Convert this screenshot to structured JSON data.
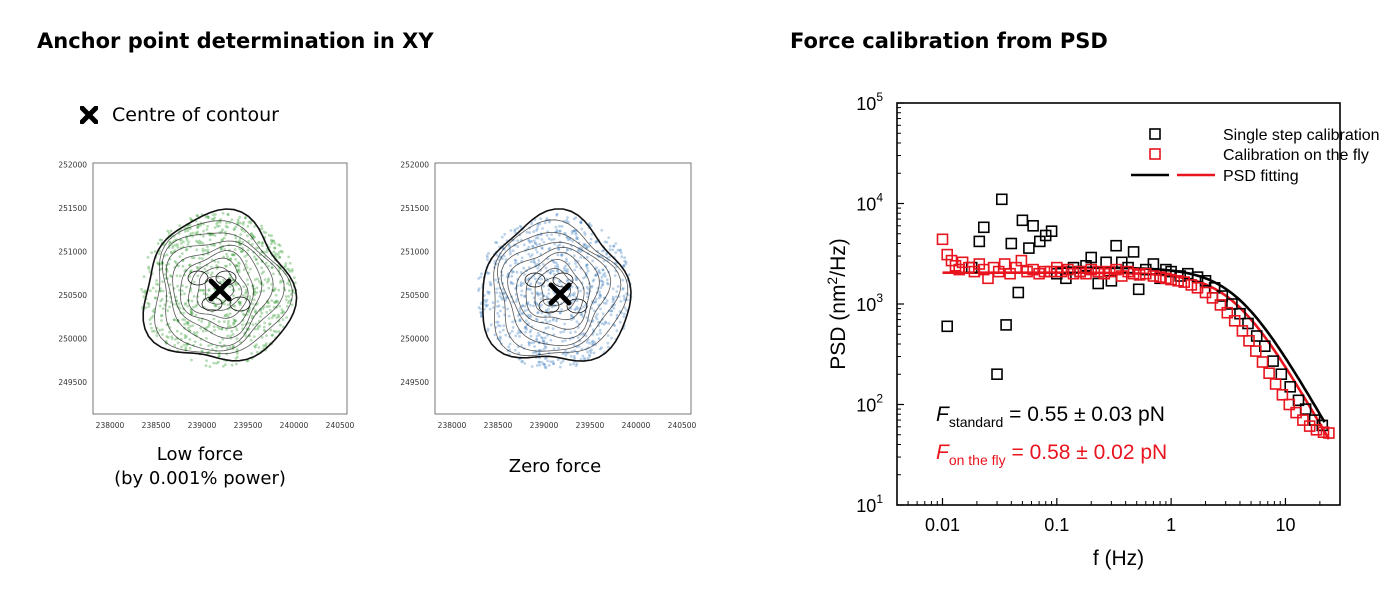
{
  "left_panel": {
    "heading": "Anchor point determination in XY",
    "legend_label": "Centre of contour",
    "plots": [
      {
        "caption_line1": "Low force",
        "caption_line2": "(by 0.001% power)",
        "color": "#2e9a2e",
        "x_ticks": [
          "238000",
          "238500",
          "239000",
          "239500",
          "240000",
          "240500"
        ],
        "y_ticks": [
          "252000",
          "251500",
          "251000",
          "250500",
          "250000",
          "249500"
        ]
      },
      {
        "caption_line1": "Zero force",
        "caption_line2": "",
        "color": "#3d7fc0",
        "x_ticks": [
          "238000",
          "238500",
          "239000",
          "239500",
          "240000",
          "240500"
        ],
        "y_ticks": [
          "252000",
          "251500",
          "251000",
          "250500",
          "250000",
          "249500"
        ]
      }
    ]
  },
  "right_panel": {
    "heading": "Force calibration from PSD"
  },
  "chart_data": {
    "type": "scatter",
    "title": "",
    "xlabel": "f (Hz)",
    "ylabel_main": "PSD (nm",
    "ylabel_sup": "2",
    "ylabel_end": "/Hz)",
    "xscale": "log",
    "yscale": "log",
    "xlim": [
      0.004,
      30
    ],
    "ylim": [
      10,
      100000
    ],
    "x_ticks": [
      {
        "value": 0.01,
        "label": "0.01"
      },
      {
        "value": 0.1,
        "label": "0.1"
      },
      {
        "value": 1,
        "label": "1"
      },
      {
        "value": 10,
        "label": "10"
      }
    ],
    "y_ticks": [
      {
        "value": 10,
        "base": "10",
        "exp": "1"
      },
      {
        "value": 100,
        "base": "10",
        "exp": "2"
      },
      {
        "value": 1000,
        "base": "10",
        "exp": "3"
      },
      {
        "value": 10000,
        "base": "10",
        "exp": "4"
      },
      {
        "value": 100000,
        "base": "10",
        "exp": "5"
      }
    ],
    "legend": {
      "placement": "top-right",
      "entries": [
        {
          "label": "Single step calibration",
          "color": "#000000",
          "marker": "square"
        },
        {
          "label": "Calibration on the fly",
          "color": "#e8141e",
          "marker": "square"
        },
        {
          "label": "PSD fitting",
          "color": "#000000",
          "color2": "#e8141e",
          "marker": "line"
        }
      ]
    },
    "series": [
      {
        "name": "Single step calibration",
        "color": "#000000",
        "points": [
          [
            0.011,
            600
          ],
          [
            0.018,
            2300
          ],
          [
            0.021,
            4200
          ],
          [
            0.023,
            5800
          ],
          [
            0.03,
            200
          ],
          [
            0.033,
            11000
          ],
          [
            0.036,
            620
          ],
          [
            0.04,
            4000
          ],
          [
            0.046,
            1300
          ],
          [
            0.05,
            6800
          ],
          [
            0.057,
            3600
          ],
          [
            0.062,
            6000
          ],
          [
            0.071,
            4200
          ],
          [
            0.08,
            4800
          ],
          [
            0.09,
            5300
          ],
          [
            0.1,
            2000
          ],
          [
            0.12,
            1800
          ],
          [
            0.14,
            2300
          ],
          [
            0.16,
            2100
          ],
          [
            0.18,
            2400
          ],
          [
            0.2,
            2900
          ],
          [
            0.23,
            1600
          ],
          [
            0.27,
            2600
          ],
          [
            0.3,
            1700
          ],
          [
            0.33,
            3800
          ],
          [
            0.37,
            2600
          ],
          [
            0.42,
            2300
          ],
          [
            0.47,
            3300
          ],
          [
            0.52,
            1400
          ],
          [
            0.6,
            2200
          ],
          [
            0.7,
            2500
          ],
          [
            0.8,
            1800
          ],
          [
            0.9,
            2200
          ],
          [
            1.0,
            2100
          ],
          [
            1.2,
            1900
          ],
          [
            1.4,
            2000
          ],
          [
            1.7,
            1850
          ],
          [
            2.0,
            1700
          ],
          [
            2.4,
            1450
          ],
          [
            2.8,
            1200
          ],
          [
            3.4,
            1000
          ],
          [
            4.0,
            800
          ],
          [
            4.7,
            640
          ],
          [
            5.6,
            480
          ],
          [
            6.6,
            380
          ],
          [
            7.8,
            270
          ],
          [
            9.2,
            200
          ],
          [
            11,
            150
          ],
          [
            13,
            110
          ],
          [
            15,
            90
          ],
          [
            18,
            70
          ],
          [
            21,
            62
          ]
        ]
      },
      {
        "name": "Calibration on the fly",
        "color": "#e8141e",
        "points": [
          [
            0.01,
            4400
          ],
          [
            0.011,
            3100
          ],
          [
            0.012,
            2700
          ],
          [
            0.013,
            2400
          ],
          [
            0.014,
            2200
          ],
          [
            0.015,
            2600
          ],
          [
            0.017,
            2300
          ],
          [
            0.019,
            2100
          ],
          [
            0.021,
            2500
          ],
          [
            0.023,
            2200
          ],
          [
            0.025,
            1800
          ],
          [
            0.028,
            2300
          ],
          [
            0.031,
            2100
          ],
          [
            0.035,
            2500
          ],
          [
            0.039,
            2000
          ],
          [
            0.044,
            2300
          ],
          [
            0.049,
            2700
          ],
          [
            0.055,
            2100
          ],
          [
            0.062,
            2200
          ],
          [
            0.07,
            2000
          ],
          [
            0.078,
            2100
          ],
          [
            0.088,
            2100
          ],
          [
            0.1,
            2300
          ],
          [
            0.11,
            2100
          ],
          [
            0.125,
            2200
          ],
          [
            0.14,
            2000
          ],
          [
            0.16,
            2100
          ],
          [
            0.18,
            2000
          ],
          [
            0.2,
            2200
          ],
          [
            0.23,
            2100
          ],
          [
            0.26,
            2000
          ],
          [
            0.29,
            2100
          ],
          [
            0.33,
            2200
          ],
          [
            0.37,
            1900
          ],
          [
            0.42,
            2100
          ],
          [
            0.47,
            2000
          ],
          [
            0.53,
            1950
          ],
          [
            0.6,
            2000
          ],
          [
            0.7,
            1900
          ],
          [
            0.8,
            1850
          ],
          [
            0.9,
            1800
          ],
          [
            1.0,
            1750
          ],
          [
            1.15,
            1700
          ],
          [
            1.3,
            1650
          ],
          [
            1.5,
            1550
          ],
          [
            1.7,
            1450
          ],
          [
            2.0,
            1300
          ],
          [
            2.3,
            1150
          ],
          [
            2.7,
            980
          ],
          [
            3.1,
            820
          ],
          [
            3.6,
            680
          ],
          [
            4.2,
            540
          ],
          [
            4.8,
            430
          ],
          [
            5.5,
            340
          ],
          [
            6.3,
            265
          ],
          [
            7.2,
            205
          ],
          [
            8.2,
            160
          ],
          [
            9.4,
            125
          ],
          [
            10.8,
            100
          ],
          [
            12.4,
            83
          ],
          [
            14.2,
            70
          ],
          [
            16.3,
            61
          ],
          [
            18.7,
            56
          ],
          [
            21.5,
            53
          ],
          [
            24,
            52
          ]
        ]
      }
    ],
    "fits": [
      {
        "name": "PSD fitting",
        "color": "#000000",
        "p0": 2300,
        "fc": 3.8,
        "x_start": 0.1,
        "x_end": 22
      },
      {
        "name": "PSD fitting",
        "color": "#e8141e",
        "p0": 2050,
        "fc": 3.6,
        "x_start": 0.01,
        "x_end": 24
      }
    ],
    "annotations": [
      {
        "var": "F",
        "sub": "standard",
        "text": " = 0.55 ± 0.03 pN",
        "color": "#000000"
      },
      {
        "var": "F",
        "sub": "on the fly",
        "text": " = 0.58 ± 0.02 pN",
        "color": "#e8141e"
      }
    ]
  }
}
